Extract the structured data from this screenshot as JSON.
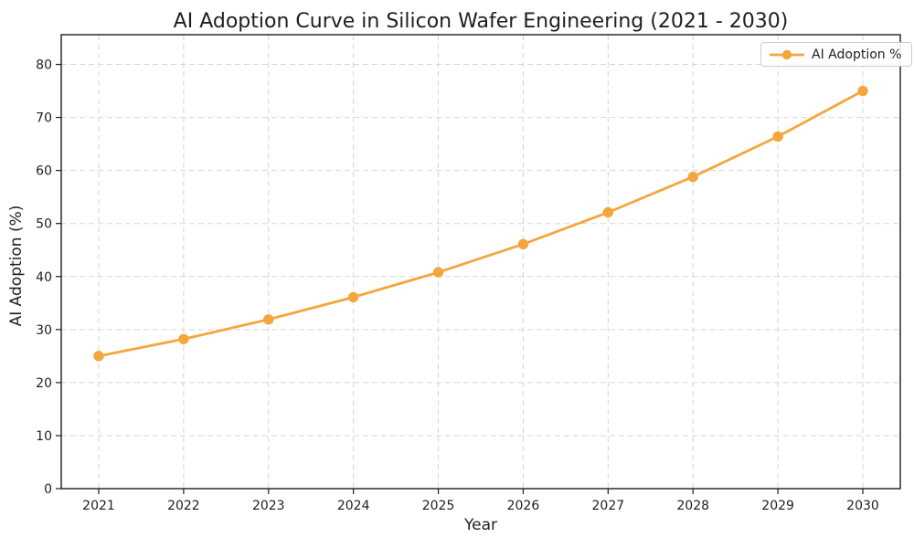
{
  "chart_data": {
    "type": "line",
    "title": "AI Adoption Curve in Silicon Wafer Engineering (2021 - 2030)",
    "xlabel": "Year",
    "ylabel": "AI Adoption (%)",
    "categories": [
      "2021",
      "2022",
      "2023",
      "2024",
      "2025",
      "2026",
      "2027",
      "2028",
      "2029",
      "2030"
    ],
    "series": [
      {
        "name": "AI Adoption %",
        "color": "#F4A63E",
        "marker": "circle",
        "values": [
          25.0,
          28.2,
          31.9,
          36.1,
          40.8,
          46.1,
          52.1,
          58.8,
          66.4,
          75.0
        ]
      }
    ],
    "ylim": [
      0,
      85.6
    ],
    "yticks": [
      0,
      10,
      20,
      30,
      40,
      50,
      60,
      70,
      80
    ],
    "grid": true,
    "grid_style": "dashed",
    "grid_color": "#d5d5d5",
    "frame_color": "#1c1c1c",
    "legend_position": "upper right",
    "legend_labels": [
      "AI Adoption %"
    ]
  }
}
